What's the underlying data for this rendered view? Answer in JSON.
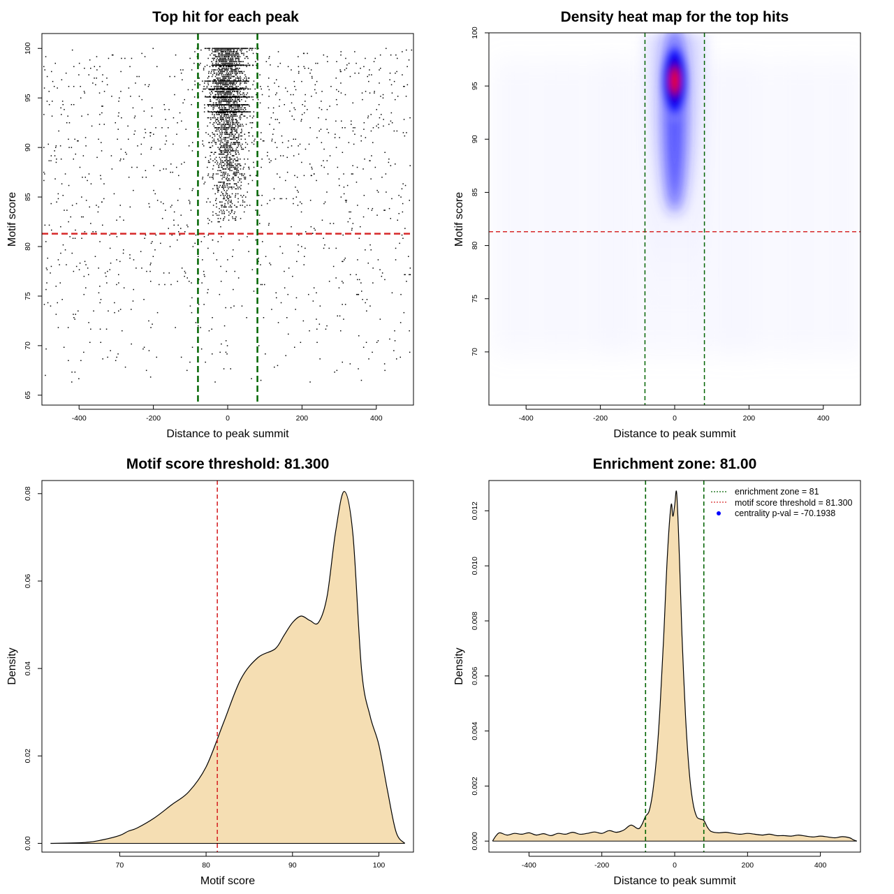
{
  "colors": {
    "threshold_line": "#d62728",
    "zone_line": "#006400",
    "density_fill": "#f5deb3",
    "heat_low": "#ffffff",
    "heat_mid": "#0000ff",
    "heat_high": "#ff0000",
    "points": "#000000",
    "legend_point": "#0000ff"
  },
  "chart_data": [
    {
      "id": "scatter",
      "type": "scatter",
      "title": "Top hit for each peak",
      "xlabel": "Distance to peak summit",
      "ylabel": "Motif score",
      "xlim": [
        -500,
        500
      ],
      "ylim": [
        64,
        101.5
      ],
      "xticks": [
        -400,
        -200,
        0,
        200,
        400
      ],
      "yticks": [
        65,
        70,
        75,
        80,
        85,
        90,
        95,
        100
      ],
      "threshold_y": 81.3,
      "zone_x": [
        -80,
        80
      ],
      "points_description": "≈3000 top-hit points concentrated within ±80 of the summit above score ~81, sparse background elsewhere",
      "grid": false
    },
    {
      "id": "heatmap",
      "type": "heatmap",
      "title": "Density heat map for the top hits",
      "xlabel": "Distance to peak summit",
      "ylabel": "Motif score",
      "xlim": [
        -500,
        500
      ],
      "ylim": [
        65,
        100
      ],
      "xticks": [
        -400,
        -200,
        0,
        200,
        400
      ],
      "yticks": [
        70,
        75,
        80,
        85,
        90,
        95,
        100
      ],
      "threshold_y": 81.3,
      "zone_x": [
        -80,
        80
      ],
      "hotspot": {
        "x": 0,
        "y": 95.5
      },
      "grid": false
    },
    {
      "id": "score-density",
      "type": "area",
      "title": "Motif score threshold: 81.300",
      "xlabel": "Motif score",
      "ylabel": "Density",
      "xlim": [
        61,
        104
      ],
      "ylim": [
        -0.002,
        0.083
      ],
      "xticks": [
        70,
        80,
        90,
        100
      ],
      "yticks": [
        0.0,
        0.02,
        0.04,
        0.06,
        0.08
      ],
      "ytick_labels": [
        "0.00",
        "0.02",
        "0.04",
        "0.06",
        "0.08"
      ],
      "threshold_x": 81.3,
      "x": [
        62,
        66,
        68,
        70,
        71,
        72,
        74,
        76,
        78,
        80,
        82,
        84,
        86,
        88,
        89,
        90,
        91,
        92,
        93,
        94,
        95,
        96,
        97,
        98,
        99,
        100,
        101,
        102,
        103
      ],
      "y": [
        0.0,
        0.0002,
        0.0008,
        0.0018,
        0.0028,
        0.0035,
        0.0058,
        0.0088,
        0.0118,
        0.0175,
        0.0275,
        0.0375,
        0.0425,
        0.0445,
        0.0475,
        0.0505,
        0.052,
        0.051,
        0.0505,
        0.0565,
        0.0715,
        0.0805,
        0.0705,
        0.0395,
        0.029,
        0.0225,
        0.012,
        0.0025,
        0.0
      ],
      "grid": false
    },
    {
      "id": "distance-density",
      "type": "area",
      "title": "Enrichment zone: 81.00",
      "xlabel": "Distance to peak summit",
      "ylabel": "Density",
      "xlim": [
        -510,
        510
      ],
      "ylim": [
        -0.0004,
        0.0131
      ],
      "xticks": [
        -400,
        -200,
        0,
        200,
        400
      ],
      "yticks": [
        0,
        0.002,
        0.004,
        0.006,
        0.008,
        0.01,
        0.012
      ],
      "ytick_labels": [
        "0.000",
        "0.002",
        "0.004",
        "0.006",
        "0.008",
        "0.010",
        "0.012"
      ],
      "zone_x": [
        -80,
        80
      ],
      "x": [
        -500,
        -490,
        -480,
        -460,
        -440,
        -420,
        -400,
        -380,
        -360,
        -340,
        -320,
        -300,
        -280,
        -260,
        -240,
        -220,
        -200,
        -180,
        -160,
        -140,
        -120,
        -100,
        -90,
        -80,
        -70,
        -60,
        -50,
        -40,
        -30,
        -20,
        -10,
        -5,
        0,
        5,
        10,
        15,
        20,
        30,
        40,
        50,
        60,
        70,
        80,
        90,
        100,
        120,
        140,
        160,
        180,
        200,
        220,
        240,
        260,
        280,
        300,
        320,
        340,
        360,
        380,
        400,
        420,
        440,
        460,
        480,
        490,
        500
      ],
      "y": [
        0.0,
        0.0002,
        0.0003,
        0.00022,
        0.00028,
        0.00025,
        0.0003,
        0.00022,
        0.00027,
        0.0002,
        0.00028,
        0.00025,
        0.00032,
        0.00025,
        0.00028,
        0.00033,
        0.00028,
        0.00038,
        0.00032,
        0.0004,
        0.00058,
        0.00045,
        0.0006,
        0.0009,
        0.0011,
        0.0018,
        0.003,
        0.0049,
        0.0075,
        0.0104,
        0.0122,
        0.0118,
        0.0122,
        0.0127,
        0.0114,
        0.0095,
        0.0075,
        0.0045,
        0.0025,
        0.0014,
        0.0009,
        0.0008,
        0.00075,
        0.0005,
        0.00035,
        0.0003,
        0.00032,
        0.00028,
        0.00025,
        0.00028,
        0.00025,
        0.00022,
        0.00025,
        0.0002,
        0.0002,
        0.00018,
        0.00022,
        0.00018,
        0.00015,
        0.00018,
        0.00015,
        0.00012,
        0.00016,
        0.00012,
        5e-05,
        0.0
      ],
      "grid": false,
      "legend": {
        "position": "top-right",
        "entries": [
          {
            "label": "enrichment zone = 81",
            "style": "dotted",
            "color": "#006400"
          },
          {
            "label": "motif score threshold = 81.300",
            "style": "dotted",
            "color": "#d62728"
          },
          {
            "label": "centrality p-val = -70.1938",
            "style": "point",
            "color": "#0000ff"
          }
        ]
      }
    }
  ]
}
